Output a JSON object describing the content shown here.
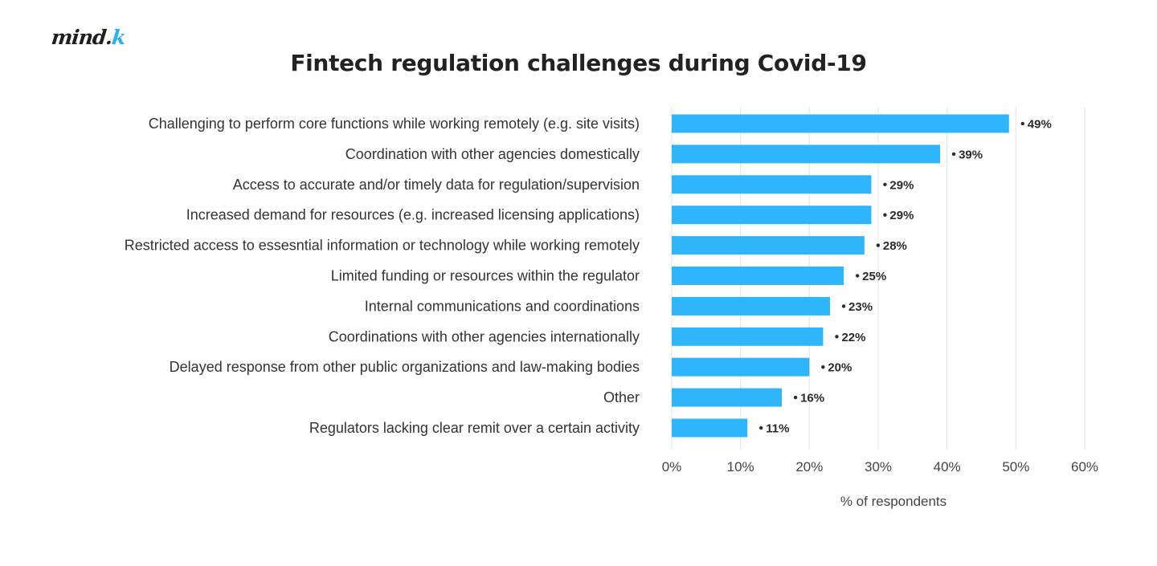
{
  "logo": {
    "text_main": "mind.",
    "text_accent": "k"
  },
  "colors": {
    "bar": "#2fb5fb",
    "grid": "#e3e3e3",
    "text": "#333333"
  },
  "chart_data": {
    "type": "bar",
    "orientation": "horizontal",
    "title": "Fintech regulation challenges during Covid-19",
    "xlabel": "% of respondents",
    "ylabel": "",
    "xlim": [
      0,
      60
    ],
    "x_ticks": [
      0,
      10,
      20,
      30,
      40,
      50,
      60
    ],
    "x_tick_labels": [
      "0%",
      "10%",
      "20%",
      "30%",
      "40%",
      "50%",
      "60%"
    ],
    "grid": true,
    "categories": [
      "Challenging to perform core functions while working remotely (e.g. site visits)",
      "Coordination with other agencies  domestically",
      "Access to accurate and/or timely data for regulation/supervision",
      "Increased demand for resources (e.g. increased licensing applications)",
      "Restricted access to essesntial information or technology while working remotely",
      "Limited funding or resources within the regulator",
      "Internal communications and coordinations",
      "Coordinations with other agencies internationally",
      "Delayed response from other public organizations and law-making bodies",
      "Other",
      "Regulators lacking clear remit over a certain activity"
    ],
    "values": [
      49,
      39,
      29,
      29,
      28,
      25,
      23,
      22,
      20,
      16,
      11
    ],
    "value_labels": [
      "49%",
      "39%",
      "29%",
      "29%",
      "28%",
      "25%",
      "23%",
      "22%",
      "20%",
      "16%",
      "11%"
    ]
  }
}
